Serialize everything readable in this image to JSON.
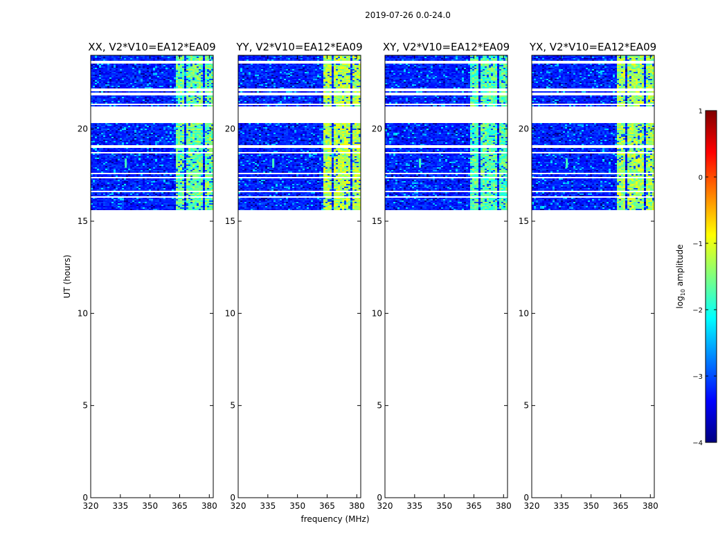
{
  "figure_title": "2019-07-26 0.0-24.0",
  "chart_data": {
    "type": "heatmap",
    "suptitle": "2019-07-26 0.0-24.0",
    "xlabel": "frequency (MHz)",
    "ylabel": "UT (hours)",
    "xlim": [
      320,
      382
    ],
    "ylim": [
      0,
      24
    ],
    "xticks": [
      320,
      335,
      350,
      365,
      380
    ],
    "yticks": [
      0,
      5,
      10,
      15,
      20
    ],
    "data_time_range_hours": [
      15.6,
      24.0
    ],
    "flagged_time_rows_hours": [
      [
        23.55,
        23.75
      ],
      [
        22.1,
        22.25
      ],
      [
        21.85,
        22.0
      ],
      [
        21.3,
        21.4
      ],
      [
        20.4,
        21.25
      ],
      [
        19.0,
        19.15
      ],
      [
        18.7,
        18.8
      ],
      [
        17.55,
        17.65
      ],
      [
        17.35,
        17.45
      ],
      [
        16.65,
        16.7
      ],
      [
        16.3,
        16.35
      ]
    ],
    "rfi_bands_MHz": [
      [
        363,
        367
      ],
      [
        368,
        371.5
      ],
      [
        372.5,
        376
      ],
      [
        377,
        381
      ]
    ],
    "panels": [
      {
        "title": "XX, V2*V10=EA12*EA09",
        "polarization": "XX",
        "rfi_level": -1.6
      },
      {
        "title": "YY, V2*V10=EA12*EA09",
        "polarization": "YY",
        "rfi_level": -1.25
      },
      {
        "title": "XY, V2*V10=EA12*EA09",
        "polarization": "XY",
        "rfi_level": -1.7
      },
      {
        "title": "YX, V2*V10=EA12*EA09",
        "polarization": "YX",
        "rfi_level": -1.35
      }
    ],
    "colorbar": {
      "label": "log10 amplitude",
      "label_main": "log",
      "label_sub": "10",
      "label_tail": " amplitude",
      "colormap": "jet",
      "range": [
        -4,
        1
      ],
      "ticks": [
        1,
        0,
        -1,
        -2,
        -3,
        -4
      ]
    }
  }
}
